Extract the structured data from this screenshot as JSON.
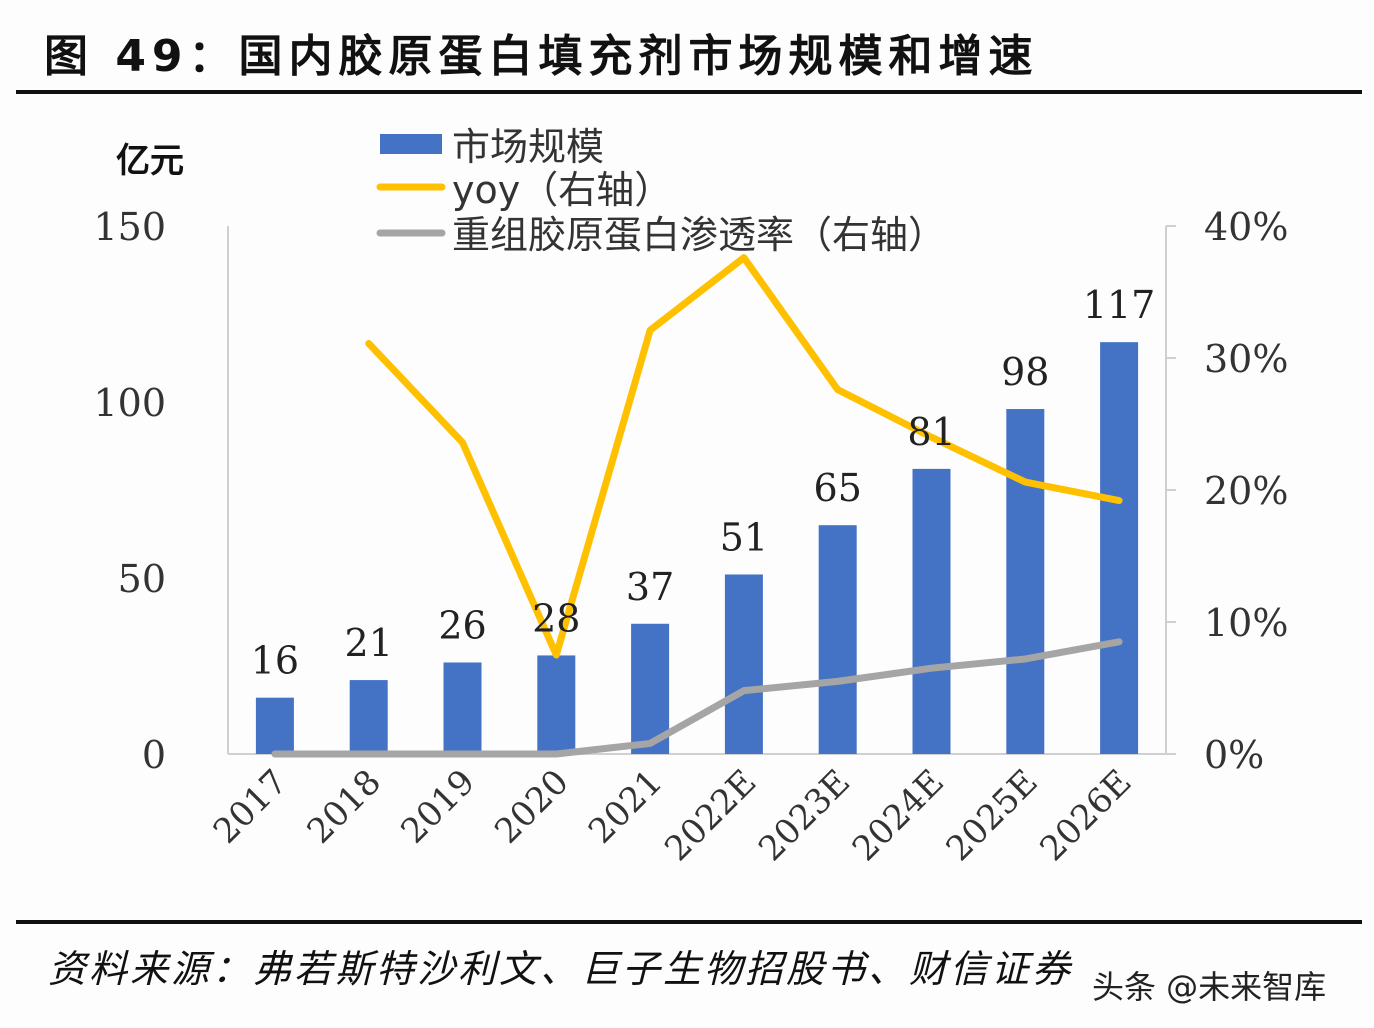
{
  "title": "图 49：国内胶原蛋白填充剂市场规模和增速",
  "source": "资料来源：弗若斯特沙利文、巨子生物招股书、财信证券",
  "watermark": "头条 @未来智库",
  "chart_data": {
    "type": "bar",
    "title": "国内胶原蛋白填充剂市场规模和增速",
    "categories": [
      "2017",
      "2018",
      "2019",
      "2020",
      "2021",
      "2022E",
      "2023E",
      "2024E",
      "2025E",
      "2026E"
    ],
    "left_axis": {
      "unit_label": "亿元",
      "ylim": [
        0,
        150
      ],
      "ticks": [
        "0",
        "50",
        "100",
        "150"
      ]
    },
    "right_axis": {
      "ylim": [
        0,
        0.4
      ],
      "ticks": [
        "0%",
        "10%",
        "20%",
        "30%",
        "40%"
      ]
    },
    "series": [
      {
        "name": "市场规模",
        "type": "bar",
        "axis": "left",
        "color": "#4472C4",
        "values": [
          16,
          21,
          26,
          28,
          37,
          51,
          65,
          81,
          98,
          117
        ]
      },
      {
        "name": "yoy（右轴）",
        "type": "line",
        "axis": "right",
        "color": "#FFC000",
        "values": [
          null,
          0.311,
          0.236,
          0.075,
          0.321,
          0.376,
          0.276,
          0.24,
          0.206,
          0.192
        ]
      },
      {
        "name": "重组胶原蛋白渗透率（右轴）",
        "type": "line",
        "axis": "right",
        "color": "#A5A5A5",
        "values": [
          0.0,
          0.0,
          0.0,
          0.0,
          0.008,
          0.048,
          0.055,
          0.065,
          0.072,
          0.085
        ]
      }
    ],
    "data_labels": [
      "16",
      "21",
      "26",
      "28",
      "37",
      "51",
      "65",
      "81",
      "98",
      "117"
    ],
    "legend": {
      "position": "top-center",
      "entries": [
        "市场规模",
        "yoy（右轴）",
        "重组胶原蛋白渗透率（右轴）"
      ]
    },
    "grid": false
  }
}
